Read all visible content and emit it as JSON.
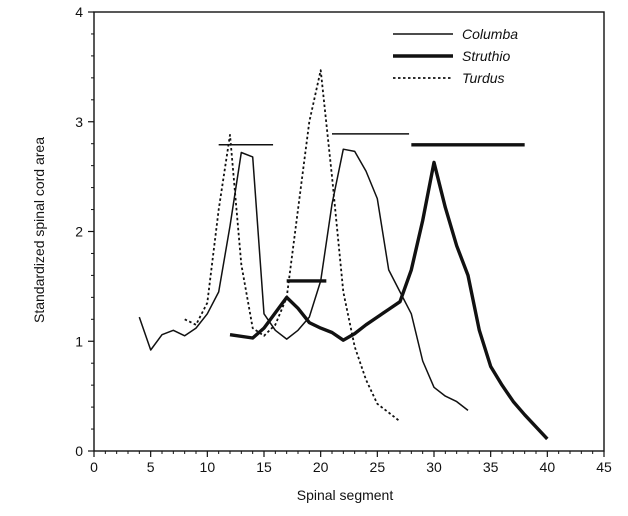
{
  "chart_data": {
    "type": "line",
    "title": "",
    "xlabel": "Spinal segment",
    "ylabel": "Standardized spinal cord area",
    "xlim": [
      0,
      45
    ],
    "ylim": [
      0,
      4
    ],
    "x_ticks": [
      0,
      5,
      10,
      15,
      20,
      25,
      30,
      35,
      40,
      45
    ],
    "y_ticks": [
      0,
      1,
      2,
      3,
      4
    ],
    "grid": false,
    "legend_position": "top-right",
    "series": [
      {
        "name": "Columba",
        "style": "thin-solid",
        "color": "#111111",
        "x": [
          4,
          5,
          6,
          7,
          8,
          9,
          10,
          11,
          12,
          13,
          14,
          15,
          16,
          17,
          18,
          19,
          20,
          21,
          22,
          23,
          24,
          25,
          26,
          27,
          28,
          29,
          30,
          31,
          32,
          33
        ],
        "y": [
          1.22,
          0.92,
          1.06,
          1.1,
          1.05,
          1.12,
          1.25,
          1.45,
          2.05,
          2.72,
          2.68,
          1.25,
          1.1,
          1.02,
          1.1,
          1.22,
          1.55,
          2.25,
          2.75,
          2.73,
          2.55,
          2.3,
          1.65,
          1.45,
          1.25,
          0.82,
          0.58,
          0.5,
          0.45,
          0.37
        ]
      },
      {
        "name": "Struthio",
        "style": "thick-solid",
        "color": "#111111",
        "x": [
          12,
          14,
          15,
          17,
          18,
          19,
          20,
          21,
          22,
          23,
          24,
          25,
          26,
          27,
          28,
          29,
          30,
          31,
          32,
          33,
          34,
          35,
          36,
          37,
          38,
          40
        ],
        "y": [
          1.06,
          1.03,
          1.12,
          1.4,
          1.3,
          1.17,
          1.12,
          1.08,
          1.01,
          1.07,
          1.15,
          1.22,
          1.29,
          1.36,
          1.65,
          2.1,
          2.63,
          2.22,
          1.87,
          1.6,
          1.1,
          0.77,
          0.6,
          0.45,
          0.33,
          0.11
        ]
      },
      {
        "name": "Turdus",
        "style": "dotted",
        "color": "#111111",
        "x": [
          8,
          9,
          10,
          11,
          12,
          13,
          14,
          15,
          16,
          17,
          18,
          19,
          20,
          21,
          22,
          23,
          24,
          25,
          26,
          27
        ],
        "y": [
          1.2,
          1.15,
          1.35,
          2.2,
          2.88,
          1.7,
          1.12,
          1.05,
          1.15,
          1.4,
          2.2,
          3.0,
          3.47,
          2.5,
          1.45,
          0.95,
          0.65,
          0.43,
          0.35,
          0.27
        ]
      }
    ],
    "bars": [
      {
        "y": 2.79,
        "x_start": 11,
        "x_end": 15.8,
        "weight": "thin"
      },
      {
        "y": 2.89,
        "x_start": 21,
        "x_end": 27.8,
        "weight": "thin"
      },
      {
        "y": 2.79,
        "x_start": 28,
        "x_end": 38,
        "weight": "thick"
      },
      {
        "y": 1.55,
        "x_start": 17,
        "x_end": 20.5,
        "weight": "thick"
      }
    ]
  }
}
